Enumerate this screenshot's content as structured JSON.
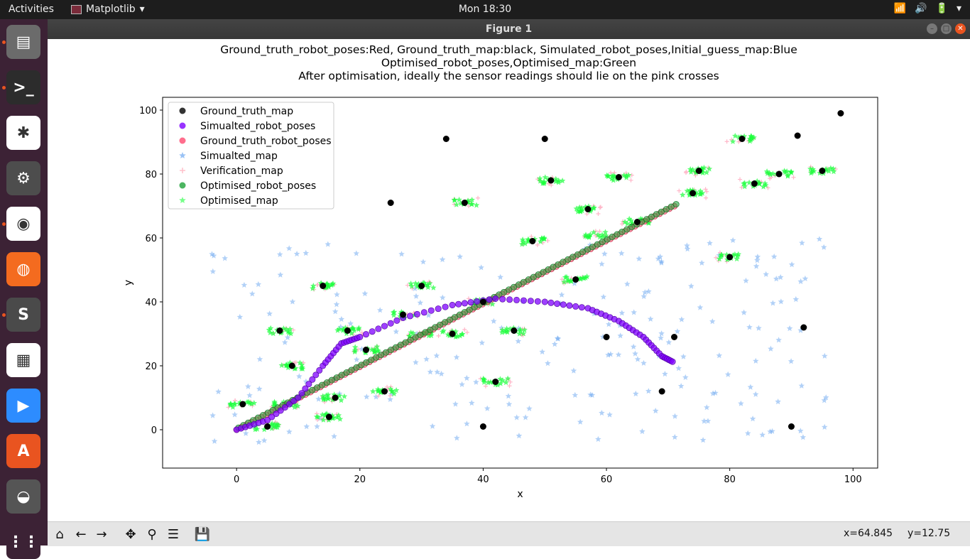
{
  "topbar": {
    "activities": "Activities",
    "app_name": "Matplotlib",
    "clock": "Mon 18:30"
  },
  "window": {
    "title": "Figure 1"
  },
  "dock": {
    "items": [
      {
        "name": "files",
        "glyph": "▤",
        "color": "#6b6b6b"
      },
      {
        "name": "terminal",
        "glyph": ">_",
        "color": "#2c2c2c"
      },
      {
        "name": "slack",
        "glyph": "✱",
        "color": "#ffffff"
      },
      {
        "name": "settings",
        "glyph": "⚙",
        "color": "#4d4d4d"
      },
      {
        "name": "chrome",
        "glyph": "◉",
        "color": "#ffffff"
      },
      {
        "name": "firefox",
        "glyph": "◍",
        "color": "#f46b1f"
      },
      {
        "name": "sublime",
        "glyph": "S",
        "color": "#4a4a4a"
      },
      {
        "name": "writer",
        "glyph": "▦",
        "color": "#ffffff"
      },
      {
        "name": "zoom",
        "glyph": "▶",
        "color": "#2d8cff"
      },
      {
        "name": "software",
        "glyph": "A",
        "color": "#e95420"
      },
      {
        "name": "unknown",
        "glyph": "◒",
        "color": "#555555"
      },
      {
        "name": "show-apps",
        "glyph": "⋮⋮",
        "color": "#3c2235"
      }
    ]
  },
  "chart_data": {
    "type": "scatter",
    "title_lines": [
      "Ground_truth_robot_poses:Red,  Ground_truth_map:black,  Simulated_robot_poses,Initial_guess_map:Blue",
      "Optimised_robot_poses,Optimised_map:Green",
      "After optimisation, ideally the sensor readings should lie on the pink crosses"
    ],
    "xlabel": "x",
    "ylabel": "y",
    "xlim": [
      -12,
      104
    ],
    "ylim": [
      -12,
      104
    ],
    "xticks": [
      0,
      20,
      40,
      60,
      80,
      100
    ],
    "yticks": [
      0,
      20,
      40,
      60,
      80,
      100
    ],
    "legend_position": "upper-left",
    "legend": [
      {
        "label": "Ground_truth_map",
        "marker": "circle",
        "color": "#000000"
      },
      {
        "label": "Simualted_robot_poses",
        "marker": "circle",
        "color": "#7f00ff"
      },
      {
        "label": "Ground_truth_robot_poses",
        "marker": "circle",
        "color": "#ff4a70"
      },
      {
        "label": "Simualted_map",
        "marker": "star",
        "color": "#5599ee"
      },
      {
        "label": "Verification_map",
        "marker": "plus",
        "color": "#ffc0cb"
      },
      {
        "label": "Optimised_robot_poses",
        "marker": "circle",
        "color": "#1fa33a"
      },
      {
        "label": "Optimised_map",
        "marker": "star",
        "color": "#1aff3a"
      }
    ],
    "ground_truth_map": [
      [
        98,
        99
      ],
      [
        91,
        92
      ],
      [
        82,
        91
      ],
      [
        95,
        81
      ],
      [
        88,
        80
      ],
      [
        75,
        81
      ],
      [
        62,
        79
      ],
      [
        51,
        78
      ],
      [
        84,
        77
      ],
      [
        74,
        74
      ],
      [
        34,
        91
      ],
      [
        50,
        91
      ],
      [
        25,
        71
      ],
      [
        37,
        71
      ],
      [
        48,
        59
      ],
      [
        57,
        69
      ],
      [
        65,
        65
      ],
      [
        80,
        54
      ],
      [
        55,
        47
      ],
      [
        14,
        45
      ],
      [
        30,
        45
      ],
      [
        40,
        40
      ],
      [
        27,
        36
      ],
      [
        45,
        31
      ],
      [
        35,
        30
      ],
      [
        18,
        31
      ],
      [
        7,
        31
      ],
      [
        21,
        25
      ],
      [
        9,
        20
      ],
      [
        71,
        29
      ],
      [
        92,
        32
      ],
      [
        69,
        12
      ],
      [
        42,
        15
      ],
      [
        24,
        12
      ],
      [
        16,
        10
      ],
      [
        1,
        8
      ],
      [
        15,
        4
      ],
      [
        5,
        1
      ],
      [
        40,
        1
      ],
      [
        90,
        1
      ],
      [
        60,
        29
      ]
    ],
    "optimised_map_clusters": [
      [
        1,
        8
      ],
      [
        5,
        1
      ],
      [
        8,
        8
      ],
      [
        9,
        20
      ],
      [
        7,
        31
      ],
      [
        14,
        45
      ],
      [
        16,
        10
      ],
      [
        15,
        4
      ],
      [
        18,
        31
      ],
      [
        21,
        25
      ],
      [
        24,
        12
      ],
      [
        27,
        36
      ],
      [
        30,
        45
      ],
      [
        30,
        30
      ],
      [
        35,
        30
      ],
      [
        40,
        40
      ],
      [
        42,
        15
      ],
      [
        45,
        31
      ],
      [
        37,
        71
      ],
      [
        48,
        59
      ],
      [
        51,
        78
      ],
      [
        57,
        69
      ],
      [
        55,
        47
      ],
      [
        58,
        61
      ],
      [
        62,
        79
      ],
      [
        65,
        65
      ],
      [
        74,
        74
      ],
      [
        75,
        81
      ],
      [
        80,
        54
      ],
      [
        82,
        91
      ],
      [
        84,
        77
      ],
      [
        88,
        80
      ],
      [
        95,
        81
      ]
    ],
    "ground_truth_poses_end": [
      71,
      71
    ],
    "simulated_poses_waypoints": [
      [
        0,
        0
      ],
      [
        5,
        3
      ],
      [
        10,
        10
      ],
      [
        14,
        20
      ],
      [
        17,
        27
      ],
      [
        20,
        29
      ],
      [
        27,
        35
      ],
      [
        35,
        39
      ],
      [
        42,
        41
      ],
      [
        50,
        40
      ],
      [
        57,
        38
      ],
      [
        62,
        34
      ],
      [
        66,
        29
      ],
      [
        69,
        23
      ],
      [
        71,
        21
      ]
    ]
  },
  "toolbar": {
    "buttons": [
      {
        "name": "home",
        "glyph": "⌂"
      },
      {
        "name": "back",
        "glyph": "←"
      },
      {
        "name": "forward",
        "glyph": "→"
      },
      {
        "name": "pan",
        "glyph": "✥"
      },
      {
        "name": "zoom",
        "glyph": "⚲"
      },
      {
        "name": "subplots",
        "glyph": "☰"
      },
      {
        "name": "save",
        "glyph": "💾"
      }
    ],
    "x_readout": "x=64.845",
    "y_readout": "y=12.75"
  }
}
